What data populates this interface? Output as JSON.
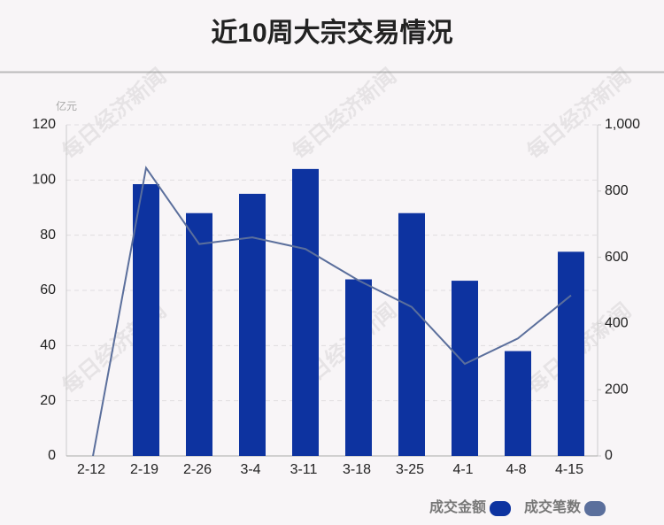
{
  "chart_data": {
    "type": "bar",
    "title": "近10周大宗交易情况",
    "y_unit": "亿元",
    "watermark": "每日经济新闻",
    "categories": [
      "2-12",
      "2-19",
      "2-26",
      "3-4",
      "3-11",
      "3-18",
      "3-25",
      "4-1",
      "4-8",
      "4-15"
    ],
    "series": [
      {
        "name": "成交金额",
        "type": "bar",
        "color": "#0d33a0",
        "values": [
          0,
          98.5,
          88,
          95,
          104,
          64,
          88,
          63.5,
          38,
          74
        ]
      },
      {
        "name": "成交笔数",
        "type": "line",
        "axis": "y2",
        "color": "#5b6f9c",
        "values": [
          0,
          870,
          640,
          660,
          625,
          530,
          450,
          278,
          355,
          485
        ]
      }
    ],
    "ylim": [
      0,
      120
    ],
    "yticks": [
      0,
      20,
      40,
      60,
      80,
      100,
      120
    ],
    "y2lim": [
      0,
      1000
    ],
    "y2ticks": [
      0,
      200,
      400,
      600,
      800,
      {
        "value": 1000,
        "label": "1,000"
      }
    ],
    "grid": true,
    "legend": "bottom-right"
  }
}
